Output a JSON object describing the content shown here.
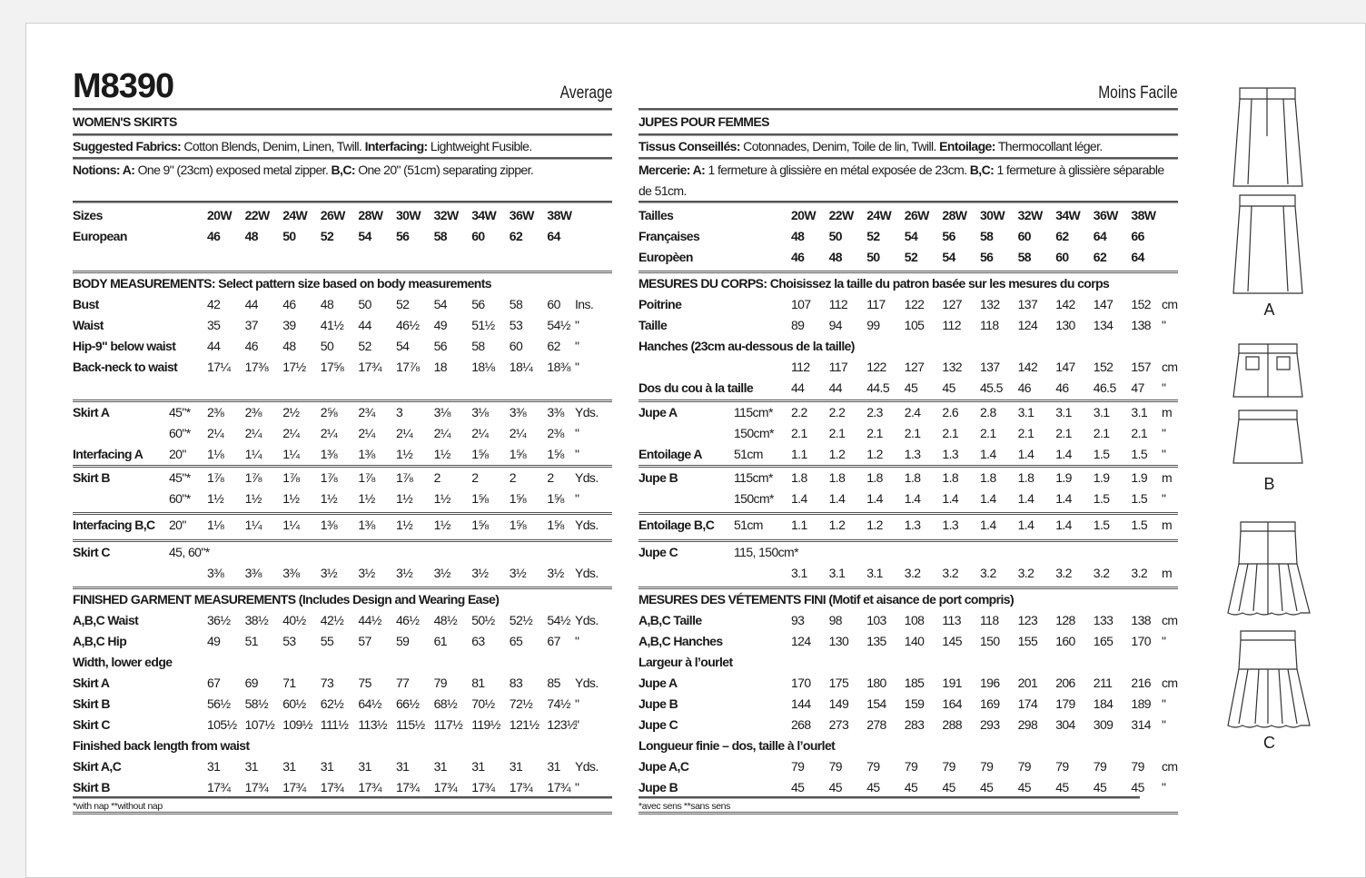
{
  "left": {
    "title": "M8390",
    "level": "Average",
    "subtitle": "WOMEN'S SKIRTS",
    "fabrics_label": "Suggested Fabrics:",
    "fabrics": " Cotton Blends, Denim, Linen, Twill. ",
    "interfacing_label": "Interfacing:",
    "interfacing": " Lightweight Fusible.",
    "notions_label": "Notions: A:",
    "notions_a": " One 9\" (23cm) exposed metal zipper. ",
    "notions_bc_label": "B,C:",
    "notions_bc": " One 20\" (51cm) separating zipper.",
    "notions_line2": "",
    "blocks": [
      {
        "rows": [
          {
            "label": "Sizes",
            "bold": true,
            "values": [
              "20W",
              "22W",
              "24W",
              "26W",
              "28W",
              "30W",
              "32W",
              "34W",
              "36W",
              "38W"
            ]
          },
          {
            "label": "European",
            "bold": true,
            "values": [
              "46",
              "48",
              "50",
              "52",
              "54",
              "56",
              "58",
              "60",
              "62",
              "64"
            ]
          }
        ]
      },
      {
        "rows": [
          {
            "heading": "BODY MEASUREMENTS: Select pattern size based on body measurements"
          },
          {
            "label": "Bust",
            "values": [
              "42",
              "44",
              "46",
              "48",
              "50",
              "52",
              "54",
              "56",
              "58",
              "60"
            ],
            "unit": "Ins."
          },
          {
            "label": "Waist",
            "values": [
              "35",
              "37",
              "39",
              "41½",
              "44",
              "46½",
              "49",
              "51½",
              "53",
              "54½"
            ],
            "unit": "\""
          },
          {
            "label": "Hip-9\" below waist",
            "values": [
              "44",
              "46",
              "48",
              "50",
              "52",
              "54",
              "56",
              "58",
              "60",
              "62"
            ],
            "unit": "\""
          },
          {
            "label": "Back-neck to waist",
            "values": [
              "17¼",
              "17⅜",
              "17½",
              "17⅝",
              "17¾",
              "17⅞",
              "18",
              "18⅛",
              "18¼",
              "18⅜"
            ],
            "unit": "\""
          }
        ]
      },
      {
        "rows": [
          {
            "label": "Skirt A",
            "sub": "45\"*",
            "values": [
              "2⅜",
              "2⅜",
              "2½",
              "2⅝",
              "2¾",
              "3",
              "3⅛",
              "3⅛",
              "3⅜",
              "3⅜"
            ],
            "unit": "Yds."
          },
          {
            "sub": "60\"*",
            "values": [
              "2¼",
              "2¼",
              "2¼",
              "2¼",
              "2¼",
              "2¼",
              "2¼",
              "2¼",
              "2¼",
              "2⅜"
            ],
            "unit": "\""
          },
          {
            "label": "Interfacing A",
            "sub": "20\"",
            "values": [
              "1⅛",
              "1¼",
              "1¼",
              "1⅜",
              "1⅜",
              "1½",
              "1½",
              "1⅝",
              "1⅝",
              "1⅝"
            ],
            "unit": "\""
          }
        ]
      },
      {
        "rows": [
          {
            "label": "Skirt B",
            "sub": "45\"*",
            "values": [
              "1⅞",
              "1⅞",
              "1⅞",
              "1⅞",
              "1⅞",
              "1⅞",
              "2",
              "2",
              "2",
              "2"
            ],
            "unit": "Yds."
          },
          {
            "sub": "60\"*",
            "values": [
              "1½",
              "1½",
              "1½",
              "1½",
              "1½",
              "1½",
              "1½",
              "1⅝",
              "1⅝",
              "1⅝"
            ],
            "unit": "\""
          }
        ]
      },
      {
        "rows": [
          {
            "label": "Interfacing B,C",
            "sub": "20\"",
            "values": [
              "1⅛",
              "1¼",
              "1¼",
              "1⅜",
              "1⅜",
              "1½",
              "1½",
              "1⅝",
              "1⅝",
              "1⅝"
            ],
            "unit": "Yds."
          }
        ]
      },
      {
        "rows": [
          {
            "label": "Skirt C",
            "sub": "45, 60\"*"
          },
          {
            "values": [
              "3⅜",
              "3⅜",
              "3⅜",
              "3½",
              "3½",
              "3½",
              "3½",
              "3½",
              "3½",
              "3½"
            ],
            "unit": "Yds."
          }
        ]
      },
      {
        "rows": [
          {
            "heading": "FINISHED GARMENT MEASUREMENTS (Includes Design and Wearing Ease)"
          },
          {
            "label": "A,B,C Waist",
            "values": [
              "36½",
              "38½",
              "40½",
              "42½",
              "44½",
              "46½",
              "48½",
              "50½",
              "52½",
              "54½"
            ],
            "unit": "Yds."
          },
          {
            "label": "A,B,C Hip",
            "values": [
              "49",
              "51",
              "53",
              "55",
              "57",
              "59",
              "61",
              "63",
              "65",
              "67"
            ],
            "unit": "\""
          },
          {
            "heading": "Width, lower edge"
          },
          {
            "label": "Skirt A",
            "values": [
              "67",
              "69",
              "71",
              "73",
              "75",
              "77",
              "79",
              "81",
              "83",
              "85"
            ],
            "unit": "Yds."
          },
          {
            "label": "Skirt B",
            "values": [
              "56½",
              "58½",
              "60½",
              "62½",
              "64½",
              "66½",
              "68½",
              "70½",
              "72½",
              "74½"
            ],
            "unit": "\""
          },
          {
            "label": "Skirt C",
            "values": [
              "105½",
              "107½",
              "109½",
              "111½",
              "113½",
              "115½",
              "117½",
              "119½",
              "121½",
              "123½"
            ],
            "unit": "\""
          },
          {
            "heading": "Finished back length from waist"
          },
          {
            "label": "Skirt A,C",
            "values": [
              "31",
              "31",
              "31",
              "31",
              "31",
              "31",
              "31",
              "31",
              "31",
              "31"
            ],
            "unit": "Yds."
          },
          {
            "label": "Skirt B",
            "values": [
              "17¾",
              "17¾",
              "17¾",
              "17¾",
              "17¾",
              "17¾",
              "17¾",
              "17¾",
              "17¾",
              "17¾"
            ],
            "unit": "\""
          }
        ]
      }
    ],
    "footnote": "*with nap   **without nap"
  },
  "right": {
    "title": "",
    "level": "Moins Facile",
    "subtitle": "JUPES POUR FEMMES",
    "fabrics_label": "Tissus Conseillés:",
    "fabrics": " Cotonnades, Denim, Toile de lin, Twill. ",
    "interfacing_label": "Entoilage:",
    "interfacing": " Thermocollant léger.",
    "notions_label": "Mercerie: A:",
    "notions_a": " 1 fermeture à glissière en métal exposée de 23cm. ",
    "notions_bc_label": "B,C:",
    "notions_bc": " 1 fermeture à glissière séparable",
    "notions_line2": "de 51cm.",
    "blocks": [
      {
        "rows": [
          {
            "label": "Tailles",
            "bold": true,
            "values": [
              "20W",
              "22W",
              "24W",
              "26W",
              "28W",
              "30W",
              "32W",
              "34W",
              "36W",
              "38W"
            ]
          },
          {
            "label": "Françaises",
            "bold": true,
            "values": [
              "48",
              "50",
              "52",
              "54",
              "56",
              "58",
              "60",
              "62",
              "64",
              "66"
            ]
          },
          {
            "label": "Europèen",
            "bold": true,
            "values": [
              "46",
              "48",
              "50",
              "52",
              "54",
              "56",
              "58",
              "60",
              "62",
              "64"
            ]
          }
        ]
      },
      {
        "rows": [
          {
            "heading": "MESURES DU CORPS: Choisissez la taille du patron basée sur les mesures du corps"
          },
          {
            "label": "Poitrine",
            "values": [
              "107",
              "112",
              "117",
              "122",
              "127",
              "132",
              "137",
              "142",
              "147",
              "152"
            ],
            "unit": "cm"
          },
          {
            "label": "Taille",
            "values": [
              "89",
              "94",
              "99",
              "105",
              "112",
              "118",
              "124",
              "130",
              "134",
              "138"
            ],
            "unit": "\""
          },
          {
            "heading": "Hanches (23cm au-dessous de la taille)"
          },
          {
            "values": [
              "112",
              "117",
              "122",
              "127",
              "132",
              "137",
              "142",
              "147",
              "152",
              "157"
            ],
            "unit": "cm"
          },
          {
            "label": "Dos du cou à la taille",
            "values": [
              "44",
              "44",
              "44.5",
              "45",
              "45",
              "45.5",
              "46",
              "46",
              "46.5",
              "47"
            ],
            "unit": "\""
          }
        ]
      },
      {
        "rows": [
          {
            "label": "Jupe A",
            "sub": "115cm*",
            "values": [
              "2.2",
              "2.2",
              "2.3",
              "2.4",
              "2.6",
              "2.8",
              "3.1",
              "3.1",
              "3.1",
              "3.1"
            ],
            "unit": "m"
          },
          {
            "sub": "150cm*",
            "values": [
              "2.1",
              "2.1",
              "2.1",
              "2.1",
              "2.1",
              "2.1",
              "2.1",
              "2.1",
              "2.1",
              "2.1"
            ],
            "unit": "\""
          },
          {
            "label": "Entoilage A",
            "sub": "51cm",
            "values": [
              "1.1",
              "1.2",
              "1.2",
              "1.3",
              "1.3",
              "1.4",
              "1.4",
              "1.4",
              "1.5",
              "1.5"
            ],
            "unit": "\""
          }
        ]
      },
      {
        "rows": [
          {
            "label": "Jupe B",
            "sub": "115cm*",
            "values": [
              "1.8",
              "1.8",
              "1.8",
              "1.8",
              "1.8",
              "1.8",
              "1.8",
              "1.9",
              "1.9",
              "1.9"
            ],
            "unit": "m"
          },
          {
            "sub": "150cm*",
            "values": [
              "1.4",
              "1.4",
              "1.4",
              "1.4",
              "1.4",
              "1.4",
              "1.4",
              "1.4",
              "1.5",
              "1.5"
            ],
            "unit": "\""
          }
        ]
      },
      {
        "rows": [
          {
            "label": "Entoilage B,C",
            "sub": "51cm",
            "values": [
              "1.1",
              "1.2",
              "1.2",
              "1.3",
              "1.3",
              "1.4",
              "1.4",
              "1.4",
              "1.5",
              "1.5"
            ],
            "unit": "m"
          }
        ]
      },
      {
        "rows": [
          {
            "label": "Jupe C",
            "sub": "115, 150cm*"
          },
          {
            "values": [
              "3.1",
              "3.1",
              "3.1",
              "3.2",
              "3.2",
              "3.2",
              "3.2",
              "3.2",
              "3.2",
              "3.2"
            ],
            "unit": "m"
          }
        ]
      },
      {
        "rows": [
          {
            "heading": "MESURES DES VÉTEMENTS FINI (Motif et aisance de port compris)"
          },
          {
            "label": "A,B,C Taille",
            "values": [
              "93",
              "98",
              "103",
              "108",
              "113",
              "118",
              "123",
              "128",
              "133",
              "138"
            ],
            "unit": "cm"
          },
          {
            "label": "A,B,C Hanches",
            "values": [
              "124",
              "130",
              "135",
              "140",
              "145",
              "150",
              "155",
              "160",
              "165",
              "170"
            ],
            "unit": "\""
          },
          {
            "heading": "Largeur à l’ourlet"
          },
          {
            "label": "Jupe A",
            "values": [
              "170",
              "175",
              "180",
              "185",
              "191",
              "196",
              "201",
              "206",
              "211",
              "216"
            ],
            "unit": "cm"
          },
          {
            "label": "Jupe B",
            "values": [
              "144",
              "149",
              "154",
              "159",
              "164",
              "169",
              "174",
              "179",
              "184",
              "189"
            ],
            "unit": "\""
          },
          {
            "label": "Jupe C",
            "values": [
              "268",
              "273",
              "278",
              "283",
              "288",
              "293",
              "298",
              "304",
              "309",
              "314"
            ],
            "unit": "\""
          },
          {
            "heading": "Longueur finie – dos, taille à l’ourlet"
          },
          {
            "label": "Jupe A,C",
            "values": [
              "79",
              "79",
              "79",
              "79",
              "79",
              "79",
              "79",
              "79",
              "79",
              "79"
            ],
            "unit": "cm"
          },
          {
            "label": "Jupe B",
            "values": [
              "45",
              "45",
              "45",
              "45",
              "45",
              "45",
              "45",
              "45",
              "45",
              "45"
            ],
            "unit": "\""
          }
        ]
      }
    ],
    "footnote": "*avec sens   **sans sens"
  },
  "drawings": {
    "labels": [
      "A",
      "B",
      "C"
    ]
  }
}
